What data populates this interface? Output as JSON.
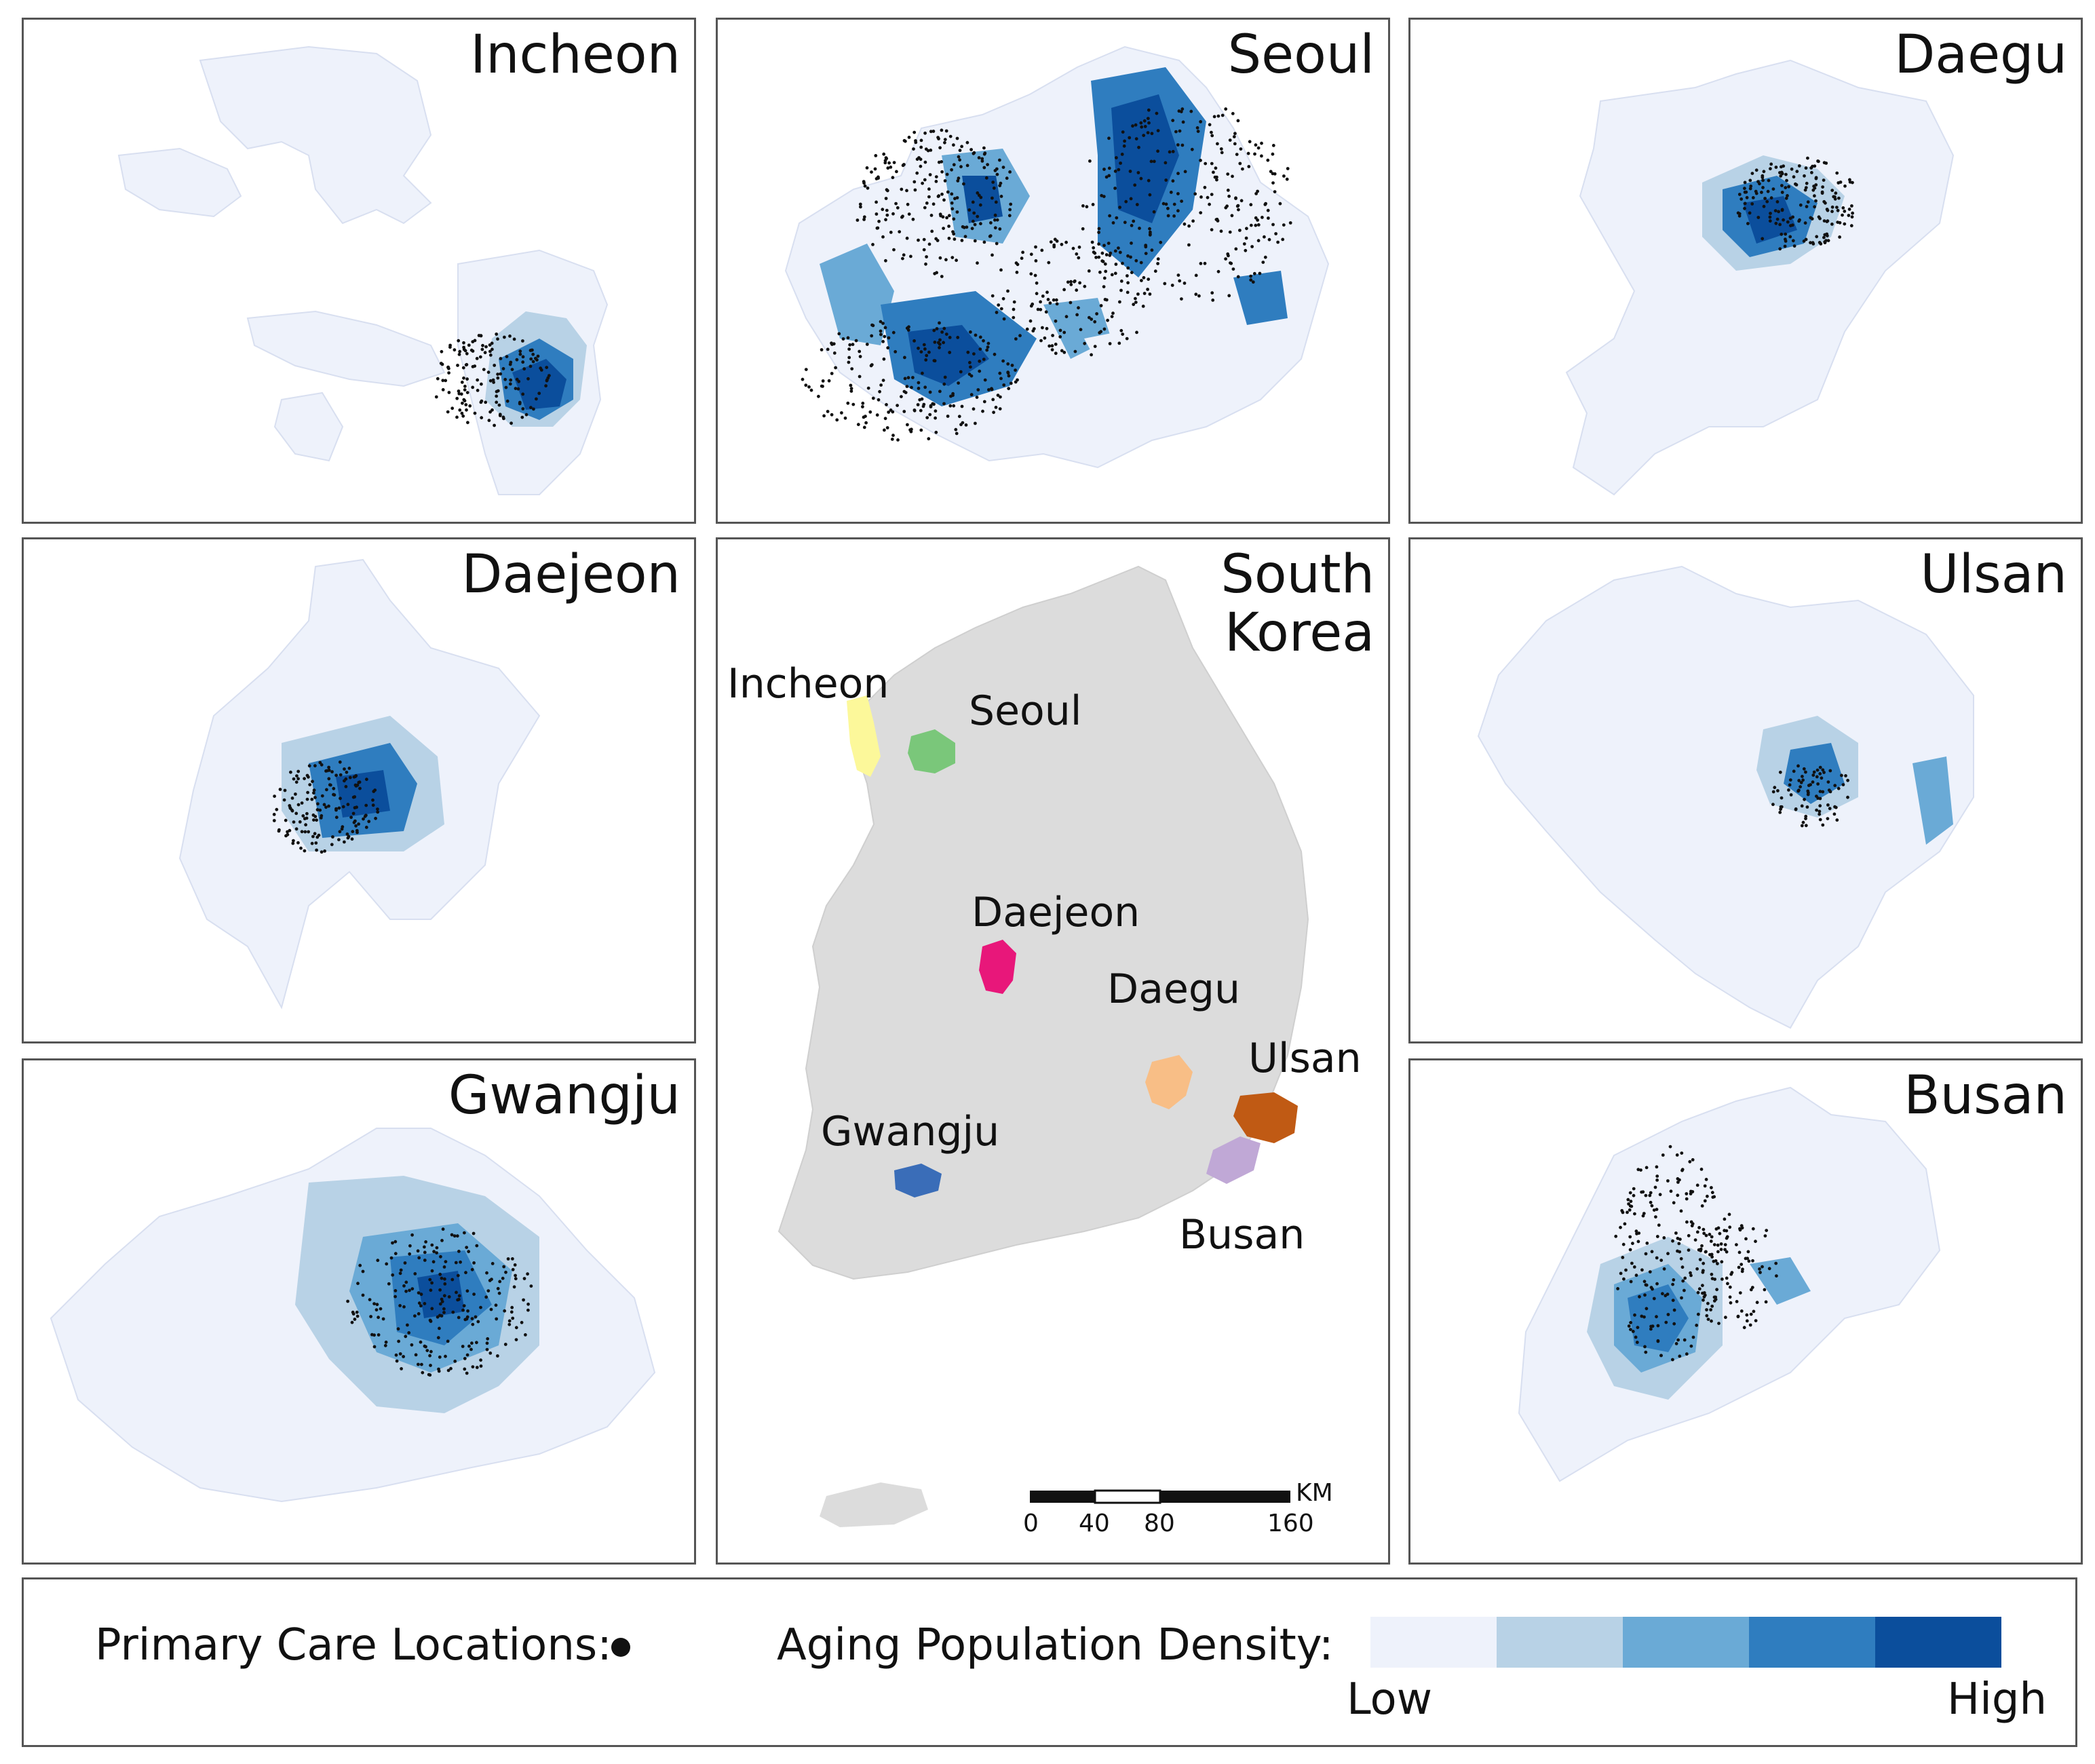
{
  "panels": {
    "incheon": {
      "title": "Incheon"
    },
    "seoul": {
      "title": "Seoul"
    },
    "daegu": {
      "title": "Daegu"
    },
    "daejeon": {
      "title": "Daejeon"
    },
    "ulsan": {
      "title": "Ulsan"
    },
    "gwangju": {
      "title": "Gwangju"
    },
    "busan": {
      "title": "Busan"
    }
  },
  "overview": {
    "title_line1": "South",
    "title_line2": "Korea",
    "city_labels": {
      "incheon": "Incheon",
      "seoul": "Seoul",
      "daejeon": "Daejeon",
      "daegu": "Daegu",
      "ulsan": "Ulsan",
      "gwangju": "Gwangju",
      "busan": "Busan"
    },
    "scale_bar": {
      "unit": "KM",
      "ticks": [
        "0",
        "40",
        "80",
        "160"
      ]
    }
  },
  "legend": {
    "points_label": "Primary Care Locations:",
    "density_label": "Aging Population Density:",
    "low_label": "Low",
    "high_label": "High",
    "color_ramp": [
      "#eef2fb",
      "#b8d2e6",
      "#6aaad6",
      "#2f7dbf",
      "#0b4e9c"
    ]
  },
  "colors": {
    "land": "#dcdcdc",
    "incheon": "#fcf89a",
    "seoul": "#7ac77a",
    "daejeon": "#e8177a",
    "daegu": "#f8be86",
    "ulsan": "#c05a14",
    "gwangju": "#3a6db8",
    "busan": "#c0a8d6",
    "marker": "#111111"
  }
}
